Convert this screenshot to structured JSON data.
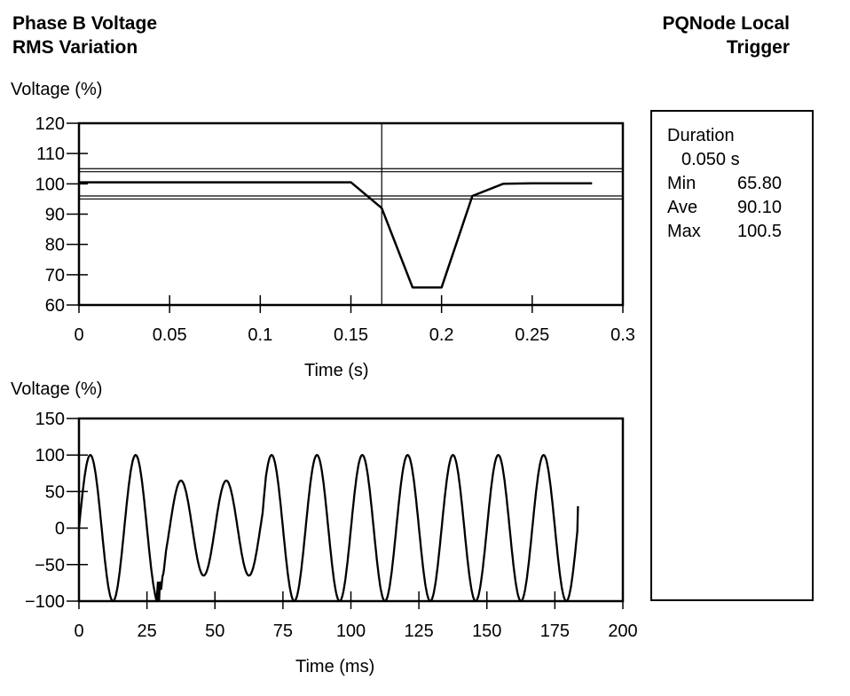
{
  "title": {
    "line1": "Phase B Voltage",
    "line2": "RMS Variation"
  },
  "trigger": {
    "line1": "PQNode Local",
    "line2": "Trigger"
  },
  "stats": {
    "duration_label": "Duration",
    "duration_value": "0.050 s",
    "rows": [
      {
        "label": "Min",
        "value": "65.80"
      },
      {
        "label": "Ave",
        "value": "90.10"
      },
      {
        "label": "Max",
        "value": "100.5"
      }
    ]
  },
  "chart_data": [
    {
      "type": "line",
      "ylabel": "Voltage (%)",
      "xlabel": "Time (s)",
      "xlim": [
        0,
        0.3
      ],
      "ylim": [
        60,
        120
      ],
      "xticks": [
        "0",
        "0.05",
        "0.1",
        "0.15",
        "0.2",
        "0.25",
        "0.3"
      ],
      "yticks": [
        "120",
        "110",
        "100",
        "90",
        "80",
        "70",
        "60"
      ],
      "reference_lines_y": [
        105,
        104,
        96,
        95
      ],
      "cursor_x": 0.167,
      "x": [
        0,
        0.15,
        0.167,
        0.184,
        0.2,
        0.217,
        0.234,
        0.25,
        0.283
      ],
      "y": [
        100.5,
        100.5,
        92,
        65.8,
        65.8,
        96,
        100,
        100.2,
        100.2
      ],
      "grid": false
    },
    {
      "type": "line",
      "ylabel": "Voltage (%)",
      "xlabel": "Time (ms)",
      "xlim": [
        0,
        200
      ],
      "ylim": [
        -100,
        150
      ],
      "xticks": [
        "0",
        "25",
        "50",
        "75",
        "100",
        "125",
        "150",
        "175",
        "200"
      ],
      "yticks": [
        "150",
        "100",
        "50",
        "0",
        "−50",
        "−100"
      ],
      "waveform": {
        "period_ms": 16.67,
        "start_ms": 0,
        "end_ms": 183.5,
        "end_value": 30,
        "sag_start_ms": 28,
        "sag_end_ms": 69,
        "normal_peak": 100,
        "sag_peak": 65,
        "transient_ms": 29,
        "jump_ms": 68.5
      },
      "grid": false
    }
  ]
}
